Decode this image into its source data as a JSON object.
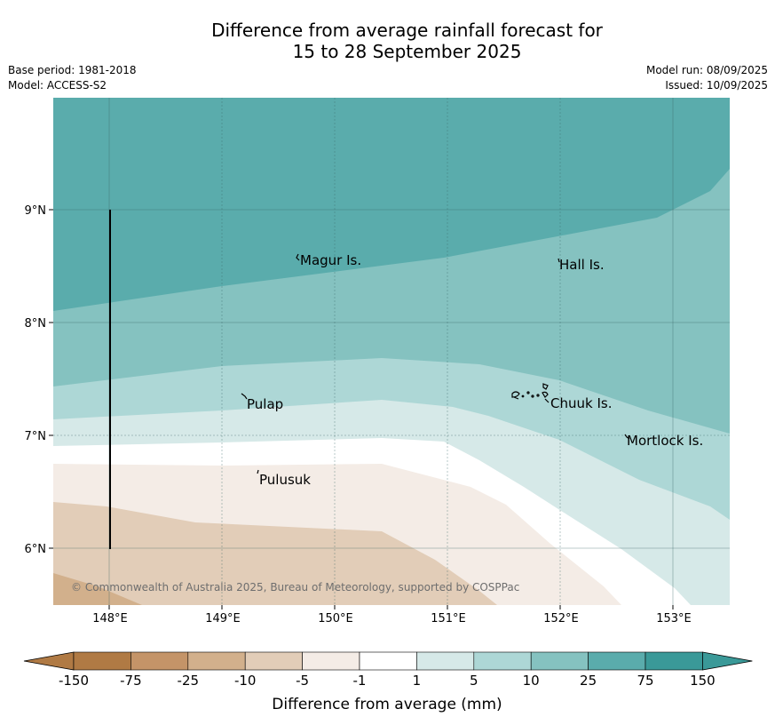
{
  "title_line1": "Difference from average rainfall forecast for",
  "title_line2": "15 to 28 September 2025",
  "base_period": "Base period: 1981-2018",
  "model": "Model: ACCESS-S2",
  "model_run": "Model run: 08/09/2025",
  "issued": "Issued: 10/09/2025",
  "copyright": "© Commonwealth of Australia 2025, Bureau of Meteorology, supported by COSPPac",
  "lat_labels": [
    "9°N",
    "8°N",
    "7°N",
    "6°N"
  ],
  "lon_labels": [
    "148°E",
    "149°E",
    "150°E",
    "151°E",
    "152°E",
    "153°E"
  ],
  "places": [
    "Magur Is.",
    "Hall Is.",
    "Pulap",
    "Chuuk Is.",
    "Mortlock Is.",
    "Pulusuk"
  ],
  "colorbar": {
    "ticks": [
      "-150",
      "-75",
      "-25",
      "-10",
      "-5",
      "-1",
      "1",
      "5",
      "10",
      "25",
      "75",
      "150"
    ],
    "colors": [
      "#b07a44",
      "#c49468",
      "#d2b08c",
      "#e2cdb8",
      "#f4ece6",
      "#ffffff",
      "#d6e9e8",
      "#add7d6",
      "#85c2c0",
      "#5aacac",
      "#3a9998"
    ],
    "label": "Difference from average (mm)"
  }
}
